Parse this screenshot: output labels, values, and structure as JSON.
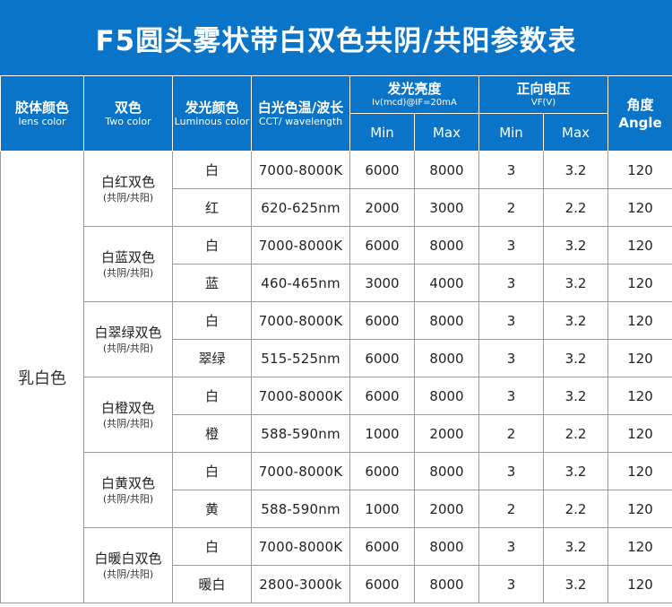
{
  "title": "F5圆头雾状带白双色共阴/共阳参数表",
  "headers": {
    "lens_cn": "胶体颜色",
    "lens_en": "lens color",
    "two_cn": "双色",
    "two_en": "Two color",
    "lum_cn": "发光颜色",
    "lum_en": "Luminous color",
    "cct_cn": "白光色温/波长",
    "cct_en": "CCT/ wavelength",
    "iv_cn": "发光亮度",
    "iv_en": "Iv(mcd)@IF=20mA",
    "vf_cn": "正向电压",
    "vf_en": "VF(V)",
    "angle_cn": "角度",
    "angle_en": "Angle",
    "min": "Min",
    "max": "Max"
  },
  "lens_color": "乳白色",
  "groups": [
    {
      "name": "白红双色",
      "sub": "(共阴/共阳)",
      "rows": [
        {
          "color": "白",
          "cct": "7000-8000K",
          "iv_min": "6000",
          "iv_max": "8000",
          "vf_min": "3",
          "vf_max": "3.2",
          "angle": "120"
        },
        {
          "color": "红",
          "cct": "620-625nm",
          "iv_min": "2000",
          "iv_max": "3000",
          "vf_min": "2",
          "vf_max": "2.2",
          "angle": "120"
        }
      ]
    },
    {
      "name": "白蓝双色",
      "sub": "(共阴/共阳)",
      "rows": [
        {
          "color": "白",
          "cct": "7000-8000K",
          "iv_min": "6000",
          "iv_max": "8000",
          "vf_min": "3",
          "vf_max": "3.2",
          "angle": "120"
        },
        {
          "color": "蓝",
          "cct": "460-465nm",
          "iv_min": "3000",
          "iv_max": "4000",
          "vf_min": "3",
          "vf_max": "3.2",
          "angle": "120"
        }
      ]
    },
    {
      "name": "白翠绿双色",
      "sub": "(共阴/共阳)",
      "rows": [
        {
          "color": "白",
          "cct": "7000-8000K",
          "iv_min": "6000",
          "iv_max": "8000",
          "vf_min": "3",
          "vf_max": "3.2",
          "angle": "120"
        },
        {
          "color": "翠绿",
          "cct": "515-525nm",
          "iv_min": "6000",
          "iv_max": "8000",
          "vf_min": "3",
          "vf_max": "3.2",
          "angle": "120"
        }
      ]
    },
    {
      "name": "白橙双色",
      "sub": "(共阴/共阳)",
      "rows": [
        {
          "color": "白",
          "cct": "7000-8000K",
          "iv_min": "6000",
          "iv_max": "8000",
          "vf_min": "3",
          "vf_max": "3.2",
          "angle": "120"
        },
        {
          "color": "橙",
          "cct": "588-590nm",
          "iv_min": "1000",
          "iv_max": "2000",
          "vf_min": "2",
          "vf_max": "2.2",
          "angle": "120"
        }
      ]
    },
    {
      "name": "白黄双色",
      "sub": "(共阴/共阳)",
      "rows": [
        {
          "color": "白",
          "cct": "7000-8000K",
          "iv_min": "6000",
          "iv_max": "8000",
          "vf_min": "3",
          "vf_max": "3.2",
          "angle": "120"
        },
        {
          "color": "黄",
          "cct": "588-590nm",
          "iv_min": "1000",
          "iv_max": "2000",
          "vf_min": "2",
          "vf_max": "2.2",
          "angle": "120"
        }
      ]
    },
    {
      "name": "白暖白双色",
      "sub": "(共阴/共阳)",
      "rows": [
        {
          "color": "白",
          "cct": "7000-8000K",
          "iv_min": "6000",
          "iv_max": "8000",
          "vf_min": "3",
          "vf_max": "3.2",
          "angle": "120"
        },
        {
          "color": "暖白",
          "cct": "2800-3000k",
          "iv_min": "6000",
          "iv_max": "8000",
          "vf_min": "3",
          "vf_max": "3.2",
          "angle": "120"
        }
      ]
    }
  ]
}
